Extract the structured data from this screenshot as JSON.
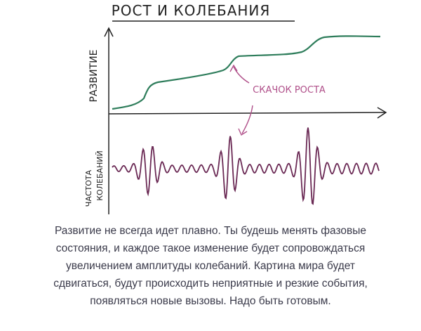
{
  "title": "РОСТ И КОЛЕБАНИЯ",
  "labels": {
    "growth": "РАЗВИТИЕ",
    "jump": "СКАЧОК РОСТА",
    "frequency": [
      "ЧАСТОТА",
      "КОЛЕБАНИЙ"
    ]
  },
  "caption": [
    "Развитие не всегда идет плавно. Ты будешь менять фазовые",
    "состояния, и каждое такое изменение будет сопровождаться",
    "увеличением амплитуды колебаний. Картина мира будет",
    "сдвигаться, будут происходить неприятные и резкие события,",
    "появляться новые вызовы. Надо быть готовым."
  ]
}
